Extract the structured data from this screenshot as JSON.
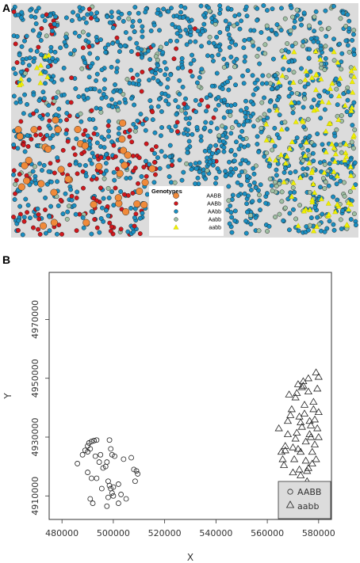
{
  "panels": {
    "a_label": "A",
    "b_label": "B"
  },
  "colors": {
    "AABB": "#f08a3a",
    "AABb": "#d1171d",
    "AAbb": "#1a8fc2",
    "Aabb": "#9fc0a4",
    "aabb": "#f0f000",
    "map_background": "#dcdcdc"
  },
  "chart_data": [
    {
      "type": "scatter",
      "title": "",
      "legend": {
        "title": "Genotypes",
        "placement": "bottom-center",
        "entries": [
          {
            "label": "AABB",
            "color": "#f08a3a",
            "marker": "circle-large"
          },
          {
            "label": "AABb",
            "color": "#d1171d",
            "marker": "circle"
          },
          {
            "label": "AAbb",
            "color": "#1a8fc2",
            "marker": "circle"
          },
          {
            "label": "Aabb",
            "color": "#9fc0a4",
            "marker": "circle"
          },
          {
            "label": "aabb",
            "color": "#f0f000",
            "marker": "triangle"
          }
        ]
      },
      "regions": [
        {
          "genotype": "AABB",
          "description": "clustered in lower-left quadrant"
        },
        {
          "genotype": "AABb",
          "description": "concentrated lower-left, scattered upper-left and center"
        },
        {
          "genotype": "AAbb",
          "description": "dominant, throughout the whole area"
        },
        {
          "genotype": "Aabb",
          "description": "sparse, throughout, more on right"
        },
        {
          "genotype": "aabb",
          "description": "concentrated on right edge"
        }
      ],
      "grid": false
    },
    {
      "type": "scatter",
      "title": "",
      "xlabel": "X",
      "ylabel": "Y",
      "xlim": [
        475000,
        585000
      ],
      "ylim": [
        4902000,
        4986000
      ],
      "xticks": [
        "480000",
        "500000",
        "520000",
        "540000",
        "560000",
        "580000"
      ],
      "xtick_values": [
        480000,
        500000,
        520000,
        540000,
        560000,
        580000
      ],
      "yticks": [
        "4910000",
        "4930000",
        "4950000",
        "4970000"
      ],
      "ytick_values": [
        4910000,
        4930000,
        4950000,
        4970000
      ],
      "grid": false,
      "legend": {
        "placement": "bottom-right",
        "entries": [
          "AABB",
          "aabb"
        ]
      },
      "series": [
        {
          "name": "AABB",
          "marker": "circle",
          "points": [
            [
              486000,
              4921000
            ],
            [
              488000,
              4924000
            ],
            [
              489000,
              4925500
            ],
            [
              490000,
              4927000
            ],
            [
              490500,
              4928000
            ],
            [
              491500,
              4928500
            ],
            [
              492500,
              4928800
            ],
            [
              493500,
              4929000
            ],
            [
              490000,
              4925000
            ],
            [
              491000,
              4926000
            ],
            [
              493000,
              4923500
            ],
            [
              494500,
              4921500
            ],
            [
              493500,
              4916000
            ],
            [
              491500,
              4916000
            ],
            [
              490000,
              4918000
            ],
            [
              495500,
              4912500
            ],
            [
              491000,
              4909000
            ],
            [
              492000,
              4907500
            ],
            [
              495000,
              4924000
            ],
            [
              497000,
              4920000
            ],
            [
              498500,
              4929000
            ],
            [
              499000,
              4926000
            ],
            [
              499500,
              4924000
            ],
            [
              500500,
              4923500
            ],
            [
              498000,
              4915000
            ],
            [
              498500,
              4913500
            ],
            [
              499000,
              4912500
            ],
            [
              499500,
              4911000
            ],
            [
              498000,
              4909500
            ],
            [
              500000,
              4913000
            ],
            [
              502000,
              4914000
            ],
            [
              503000,
              4910500
            ],
            [
              505000,
              4909000
            ],
            [
              502000,
              4907500
            ],
            [
              504000,
              4922500
            ],
            [
              507000,
              4923000
            ],
            [
              509000,
              4918500
            ],
            [
              509500,
              4917500
            ],
            [
              508500,
              4915000
            ],
            [
              497500,
              4906500
            ],
            [
              496000,
              4919500
            ],
            [
              497500,
              4921500
            ],
            [
              500000,
              4910000
            ],
            [
              508000,
              4919000
            ]
          ]
        },
        {
          "name": "aabb",
          "marker": "triangle",
          "points": [
            [
              564500,
              4933000
            ],
            [
              565500,
              4925000
            ],
            [
              566000,
              4922500
            ],
            [
              566500,
              4920500
            ],
            [
              567000,
              4927000
            ],
            [
              568000,
              4931000
            ],
            [
              569000,
              4937500
            ],
            [
              569500,
              4939500
            ],
            [
              570000,
              4918000
            ],
            [
              570500,
              4922500
            ],
            [
              571000,
              4929500
            ],
            [
              571500,
              4931500
            ],
            [
              571000,
              4943500
            ],
            [
              571500,
              4945000
            ],
            [
              572000,
              4948000
            ],
            [
              572000,
              4926000
            ],
            [
              572500,
              4919000
            ],
            [
              573000,
              4917000
            ],
            [
              573000,
              4935000
            ],
            [
              573500,
              4933500
            ],
            [
              573500,
              4947000
            ],
            [
              574000,
              4949000
            ],
            [
              574500,
              4941000
            ],
            [
              574500,
              4938000
            ],
            [
              575000,
              4928500
            ],
            [
              575000,
              4922000
            ],
            [
              575500,
              4918500
            ],
            [
              575500,
              4915000
            ],
            [
              576000,
              4945500
            ],
            [
              576000,
              4950000
            ],
            [
              576500,
              4935500
            ],
            [
              576500,
              4931000
            ],
            [
              577000,
              4930000
            ],
            [
              577500,
              4925000
            ],
            [
              577500,
              4921000
            ],
            [
              578000,
              4942000
            ],
            [
              578000,
              4939500
            ],
            [
              578500,
              4936000
            ],
            [
              578500,
              4927500
            ],
            [
              579000,
              4922500
            ],
            [
              579000,
              4952000
            ],
            [
              579500,
              4946500
            ],
            [
              579500,
              4933000
            ],
            [
              580000,
              4930000
            ],
            [
              580000,
              4938500
            ],
            [
              568500,
              4944500
            ],
            [
              570000,
              4926500
            ],
            [
              574000,
              4947500
            ],
            [
              577000,
              4934000
            ],
            [
              572500,
              4937000
            ],
            [
              580000,
              4950500
            ],
            [
              568000,
              4935500
            ],
            [
              567000,
              4925500
            ],
            [
              573000,
              4925000
            ],
            [
              576000,
              4919500
            ]
          ]
        }
      ]
    }
  ]
}
